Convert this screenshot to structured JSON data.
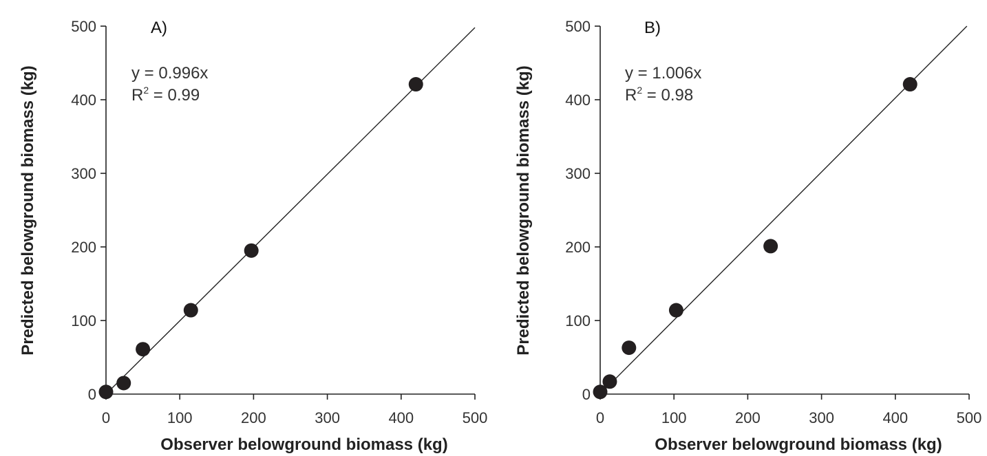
{
  "colors": {
    "point": "#231f20",
    "axis": "#222222",
    "text": "#333333"
  },
  "chart_data": [
    {
      "type": "scatter",
      "panel_label": "A)",
      "xlabel": "Observer belowground biomass (kg)",
      "ylabel": "Predicted belowground biomass (kg)",
      "xlim": [
        0,
        500
      ],
      "ylim": [
        0,
        500
      ],
      "xticks": [
        "0",
        "100",
        "200",
        "300",
        "400",
        "500"
      ],
      "yticks": [
        "0",
        "100",
        "200",
        "300",
        "400",
        "500"
      ],
      "equation": "y = 0.996x",
      "r2_prefix": "R",
      "r2_sup": "2",
      "r2_value": " = 0.99",
      "fit_slope": 0.996,
      "x": [
        0,
        24,
        50,
        115,
        197,
        420
      ],
      "y": [
        3,
        15,
        61,
        114,
        195,
        421
      ]
    },
    {
      "type": "scatter",
      "panel_label": "B)",
      "xlabel": "Observer belowground biomass (kg)",
      "ylabel": "Predicted belowground biomass (kg)",
      "xlim": [
        0,
        500
      ],
      "ylim": [
        0,
        500
      ],
      "xticks": [
        "0",
        "100",
        "200",
        "300",
        "400",
        "500"
      ],
      "yticks": [
        "0",
        "100",
        "200",
        "300",
        "400",
        "500"
      ],
      "equation": "y = 1.006x",
      "r2_prefix": "R",
      "r2_sup": "2",
      "r2_value": " = 0.98",
      "fit_slope": 1.006,
      "x": [
        0,
        13,
        39,
        103,
        231,
        420
      ],
      "y": [
        3,
        17,
        63,
        114,
        201,
        421
      ]
    }
  ]
}
